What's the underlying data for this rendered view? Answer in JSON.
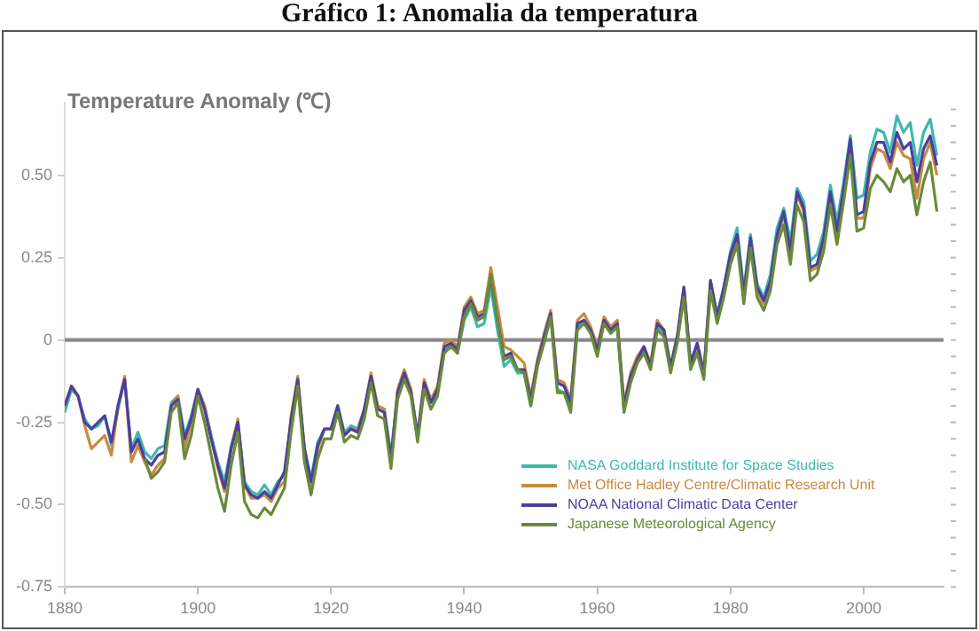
{
  "chart_data": {
    "type": "line",
    "title": "Gráfico 1: Anomalia da temperatura",
    "subtitle": "Temperature Anomaly (℃)",
    "x": [
      1880,
      1881,
      1882,
      1883,
      1884,
      1885,
      1886,
      1887,
      1888,
      1889,
      1890,
      1891,
      1892,
      1893,
      1894,
      1895,
      1896,
      1897,
      1898,
      1899,
      1900,
      1901,
      1902,
      1903,
      1904,
      1905,
      1906,
      1907,
      1908,
      1909,
      1910,
      1911,
      1912,
      1913,
      1914,
      1915,
      1916,
      1917,
      1918,
      1919,
      1920,
      1921,
      1922,
      1923,
      1924,
      1925,
      1926,
      1927,
      1928,
      1929,
      1930,
      1931,
      1932,
      1933,
      1934,
      1935,
      1936,
      1937,
      1938,
      1939,
      1940,
      1941,
      1942,
      1943,
      1944,
      1945,
      1946,
      1947,
      1948,
      1949,
      1950,
      1951,
      1952,
      1953,
      1954,
      1955,
      1956,
      1957,
      1958,
      1959,
      1960,
      1961,
      1962,
      1963,
      1964,
      1965,
      1966,
      1967,
      1968,
      1969,
      1970,
      1971,
      1972,
      1973,
      1974,
      1975,
      1976,
      1977,
      1978,
      1979,
      1980,
      1981,
      1982,
      1983,
      1984,
      1985,
      1986,
      1987,
      1988,
      1989,
      1990,
      1991,
      1992,
      1993,
      1994,
      1995,
      1996,
      1997,
      1998,
      1999,
      2000,
      2001,
      2002,
      2003,
      2004,
      2005,
      2006,
      2007,
      2008,
      2009,
      2010,
      2011
    ],
    "series": [
      {
        "name": "NASA Goddard Institute for Space Studies",
        "color": "#3fb8b0",
        "values": [
          -0.22,
          -0.15,
          -0.17,
          -0.24,
          -0.27,
          -0.26,
          -0.23,
          -0.32,
          -0.21,
          -0.12,
          -0.33,
          -0.28,
          -0.34,
          -0.36,
          -0.33,
          -0.32,
          -0.19,
          -0.17,
          -0.29,
          -0.23,
          -0.15,
          -0.2,
          -0.29,
          -0.37,
          -0.43,
          -0.32,
          -0.25,
          -0.43,
          -0.46,
          -0.47,
          -0.44,
          -0.47,
          -0.43,
          -0.41,
          -0.25,
          -0.13,
          -0.33,
          -0.42,
          -0.31,
          -0.27,
          -0.27,
          -0.2,
          -0.28,
          -0.26,
          -0.27,
          -0.21,
          -0.11,
          -0.2,
          -0.21,
          -0.35,
          -0.16,
          -0.1,
          -0.15,
          -0.3,
          -0.14,
          -0.19,
          -0.16,
          -0.03,
          -0.01,
          -0.04,
          0.06,
          0.1,
          0.04,
          0.05,
          0.16,
          0.03,
          -0.08,
          -0.06,
          -0.1,
          -0.1,
          -0.2,
          -0.08,
          0,
          0.08,
          -0.15,
          -0.16,
          -0.2,
          0.04,
          0.06,
          0.02,
          -0.04,
          0.06,
          0.02,
          0.04,
          -0.21,
          -0.12,
          -0.06,
          -0.03,
          -0.08,
          0.04,
          0.02,
          -0.09,
          0,
          0.15,
          -0.08,
          -0.03,
          -0.11,
          0.17,
          0.08,
          0.16,
          0.27,
          0.34,
          0.15,
          0.32,
          0.17,
          0.13,
          0.2,
          0.34,
          0.4,
          0.3,
          0.46,
          0.42,
          0.24,
          0.26,
          0.33,
          0.47,
          0.36,
          0.48,
          0.62,
          0.43,
          0.44,
          0.57,
          0.64,
          0.63,
          0.57,
          0.68,
          0.63,
          0.66,
          0.53,
          0.63,
          0.67,
          0.56
        ]
      },
      {
        "name": "Met Office Hadley Centre/Climatic Research Unit",
        "color": "#c98a40",
        "values": [
          -0.2,
          -0.14,
          -0.17,
          -0.26,
          -0.33,
          -0.31,
          -0.29,
          -0.35,
          -0.2,
          -0.11,
          -0.37,
          -0.32,
          -0.37,
          -0.41,
          -0.38,
          -0.36,
          -0.2,
          -0.17,
          -0.33,
          -0.25,
          -0.15,
          -0.2,
          -0.3,
          -0.39,
          -0.46,
          -0.33,
          -0.24,
          -0.44,
          -0.48,
          -0.48,
          -0.47,
          -0.49,
          -0.45,
          -0.43,
          -0.23,
          -0.11,
          -0.33,
          -0.44,
          -0.33,
          -0.27,
          -0.27,
          -0.2,
          -0.29,
          -0.27,
          -0.27,
          -0.21,
          -0.1,
          -0.2,
          -0.21,
          -0.37,
          -0.15,
          -0.09,
          -0.15,
          -0.29,
          -0.12,
          -0.18,
          -0.14,
          -0.01,
          0,
          -0.02,
          0.1,
          0.13,
          0.08,
          0.09,
          0.22,
          0.1,
          -0.02,
          -0.03,
          -0.05,
          -0.07,
          -0.17,
          -0.06,
          0.02,
          0.09,
          -0.12,
          -0.13,
          -0.18,
          0.06,
          0.08,
          0.04,
          -0.02,
          0.07,
          0.04,
          0.06,
          -0.19,
          -0.1,
          -0.05,
          -0.02,
          -0.07,
          0.06,
          0.03,
          -0.08,
          0.01,
          0.16,
          -0.07,
          -0.01,
          -0.1,
          0.18,
          0.07,
          0.15,
          0.25,
          0.31,
          0.13,
          0.3,
          0.15,
          0.11,
          0.17,
          0.31,
          0.38,
          0.26,
          0.44,
          0.39,
          0.21,
          0.22,
          0.3,
          0.44,
          0.32,
          0.45,
          0.57,
          0.37,
          0.37,
          0.52,
          0.58,
          0.57,
          0.52,
          0.6,
          0.56,
          0.55,
          0.43,
          0.55,
          0.6,
          0.5
        ]
      },
      {
        "name": "NOAA National Climatic Data Center",
        "color": "#4b3f9e",
        "values": [
          -0.2,
          -0.14,
          -0.17,
          -0.25,
          -0.27,
          -0.25,
          -0.23,
          -0.31,
          -0.2,
          -0.12,
          -0.34,
          -0.3,
          -0.36,
          -0.38,
          -0.35,
          -0.34,
          -0.2,
          -0.18,
          -0.3,
          -0.24,
          -0.15,
          -0.21,
          -0.3,
          -0.38,
          -0.45,
          -0.33,
          -0.25,
          -0.44,
          -0.47,
          -0.48,
          -0.46,
          -0.48,
          -0.44,
          -0.4,
          -0.24,
          -0.12,
          -0.33,
          -0.43,
          -0.32,
          -0.27,
          -0.27,
          -0.2,
          -0.29,
          -0.27,
          -0.28,
          -0.21,
          -0.11,
          -0.21,
          -0.22,
          -0.36,
          -0.16,
          -0.1,
          -0.16,
          -0.29,
          -0.13,
          -0.19,
          -0.15,
          -0.02,
          -0.01,
          -0.03,
          0.09,
          0.12,
          0.07,
          0.08,
          0.19,
          0.06,
          -0.05,
          -0.04,
          -0.09,
          -0.09,
          -0.18,
          -0.07,
          0.01,
          0.08,
          -0.13,
          -0.14,
          -0.19,
          0.05,
          0.06,
          0.03,
          -0.03,
          0.06,
          0.03,
          0.05,
          -0.2,
          -0.11,
          -0.06,
          -0.02,
          -0.08,
          0.05,
          0.03,
          -0.08,
          0.01,
          0.16,
          -0.07,
          -0.01,
          -0.1,
          0.18,
          0.07,
          0.16,
          0.26,
          0.32,
          0.14,
          0.31,
          0.16,
          0.12,
          0.18,
          0.32,
          0.39,
          0.27,
          0.45,
          0.4,
          0.22,
          0.23,
          0.31,
          0.45,
          0.33,
          0.46,
          0.61,
          0.38,
          0.39,
          0.54,
          0.6,
          0.6,
          0.54,
          0.63,
          0.58,
          0.6,
          0.48,
          0.58,
          0.62,
          0.53
        ]
      },
      {
        "name": "Japanese Meteorological Agency",
        "color": "#6a8a3a",
        "values": [
          null,
          null,
          null,
          null,
          null,
          null,
          null,
          null,
          null,
          null,
          null,
          null,
          -0.36,
          -0.42,
          -0.4,
          -0.37,
          -0.22,
          -0.19,
          -0.36,
          -0.29,
          -0.17,
          -0.25,
          -0.35,
          -0.45,
          -0.52,
          -0.38,
          -0.28,
          -0.49,
          -0.53,
          -0.54,
          -0.51,
          -0.53,
          -0.49,
          -0.45,
          -0.28,
          -0.14,
          -0.37,
          -0.47,
          -0.36,
          -0.3,
          -0.3,
          -0.22,
          -0.31,
          -0.29,
          -0.3,
          -0.24,
          -0.13,
          -0.23,
          -0.24,
          -0.39,
          -0.18,
          -0.12,
          -0.17,
          -0.31,
          -0.15,
          -0.21,
          -0.17,
          -0.04,
          -0.02,
          -0.04,
          0.07,
          0.11,
          0.06,
          0.07,
          0.2,
          0.06,
          -0.06,
          -0.05,
          -0.09,
          -0.1,
          -0.2,
          -0.08,
          -0.01,
          0.07,
          -0.16,
          -0.16,
          -0.22,
          0.03,
          0.05,
          0.02,
          -0.05,
          0.05,
          0.02,
          0.04,
          -0.22,
          -0.13,
          -0.07,
          -0.04,
          -0.09,
          0.03,
          0.01,
          -0.1,
          -0.01,
          0.13,
          -0.09,
          -0.04,
          -0.12,
          0.15,
          0.05,
          0.13,
          0.23,
          0.29,
          0.11,
          0.28,
          0.13,
          0.09,
          0.15,
          0.29,
          0.35,
          0.23,
          0.41,
          0.36,
          0.18,
          0.2,
          0.27,
          0.41,
          0.29,
          0.42,
          0.56,
          0.33,
          0.34,
          0.46,
          0.5,
          0.48,
          0.45,
          0.52,
          0.48,
          0.5,
          0.38,
          0.48,
          0.54,
          0.39
        ]
      }
    ],
    "xlim": [
      1880,
      2012
    ],
    "xticks": [
      1880,
      1900,
      1920,
      1940,
      1960,
      1980,
      2000
    ],
    "ylim": [
      -0.75,
      0.72
    ],
    "yticks": [
      {
        "value": -0.75,
        "label": "-0.75"
      },
      {
        "value": -0.5,
        "label": "-0.50"
      },
      {
        "value": -0.25,
        "label": "-0.25"
      },
      0,
      {
        "value": 0.25,
        "label": "0.25"
      },
      {
        "value": 0.5,
        "label": "0.50"
      }
    ],
    "ref_lines": [
      {
        "axis": "y",
        "value": 0,
        "color": "#8a8a8a"
      }
    ],
    "grid": false,
    "legend": "bottom right",
    "marker": "none",
    "line_style": "solid"
  }
}
